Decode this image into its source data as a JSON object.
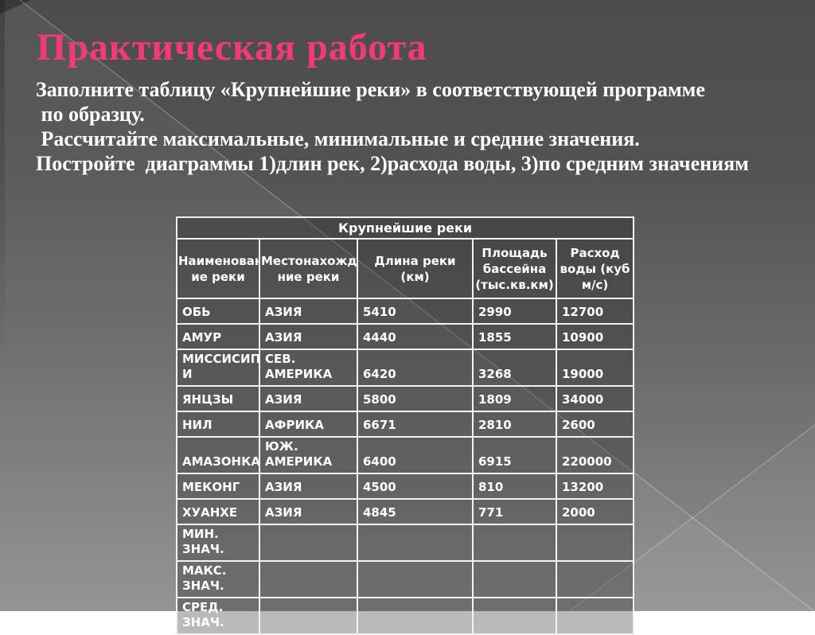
{
  "theme": {
    "title_color": "#f23a7b",
    "text_color": "#ffffff",
    "table_border_color": "#f2f2f2",
    "background_top": "#4c4c4c",
    "background_bottom": "#8f8f8f"
  },
  "slide": {
    "title": "Практическая работа",
    "body": "Заполните таблицу «Крупнейшие реки» в соответствующей программе\n по образцу.\n Рассчитайте максимальные, минимальные и средние значения.\nПостройте  диаграммы 1)длин рек, 2)расхода воды, 3)по средним значениям"
  },
  "table": {
    "title": "Крупнейшие реки",
    "columns": [
      "Наименован\nие реки",
      "Местонахожде\nние реки",
      "Длина реки\n(км)",
      "Площадь\nбассейна\n(тыс.кв.км)",
      "Расход\nводы (куб\nм/с)"
    ],
    "rows": [
      [
        "ОБЬ",
        "АЗИЯ",
        "5410",
        "2990",
        "12700"
      ],
      [
        "АМУР",
        "АЗИЯ",
        "4440",
        "1855",
        "10900"
      ],
      [
        "МИССИСИП\nИ",
        "СЕВ. АМЕРИКА",
        "6420",
        "3268",
        "19000"
      ],
      [
        "ЯНЦЗЫ",
        "АЗИЯ",
        "5800",
        "1809",
        "34000"
      ],
      [
        "НИЛ",
        "АФРИКА",
        "6671",
        "2810",
        "2600"
      ],
      [
        "АМАЗОНКА",
        "ЮЖ. АМЕРИКА",
        "6400",
        "6915",
        "220000"
      ],
      [
        "МЕКОНГ",
        "АЗИЯ",
        "4500",
        "810",
        "13200"
      ],
      [
        "ХУАНХЕ",
        "АЗИЯ",
        "4845",
        "771",
        "2000"
      ],
      [
        "МИН. ЗНАЧ.",
        "",
        "",
        "",
        ""
      ],
      [
        "МАКС. ЗНАЧ.",
        "",
        "",
        "",
        ""
      ],
      [
        "СРЕД. ЗНАЧ.",
        "",
        "",
        "",
        ""
      ]
    ]
  }
}
